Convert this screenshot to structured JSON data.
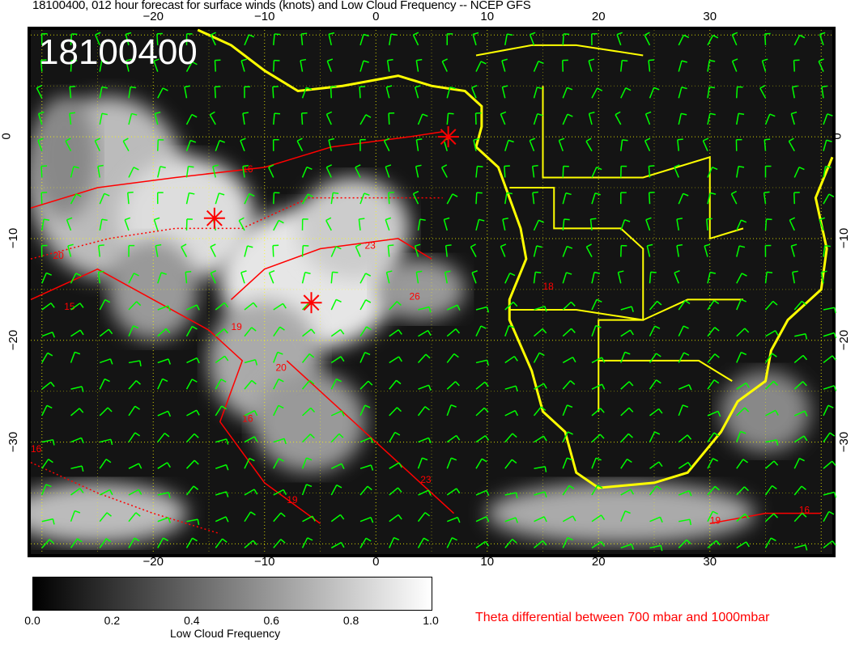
{
  "title": "18100400, 012 hour forecast for surface winds (knots) and Low Cloud Frequency -- NCEP GFS",
  "timestamp_label": "18100400",
  "map": {
    "lon_range": [
      -31,
      41
    ],
    "lat_range": [
      -41,
      10.5
    ],
    "lon_ticks": [
      "−20",
      "−10",
      "0",
      "10",
      "20",
      "30"
    ],
    "lon_tick_values": [
      -20,
      -10,
      0,
      10,
      20,
      30
    ],
    "lat_ticks": [
      "0",
      "−10",
      "−20",
      "−30"
    ],
    "lat_tick_values": [
      0,
      -10,
      -20,
      -30
    ],
    "colors": {
      "coastline": "#ffff00",
      "wind_barbs": "#00ff00",
      "theta_contours": "#ff0000",
      "grid": "#ffff00"
    },
    "markers": [
      {
        "lon": -14.5,
        "lat": -8,
        "icon": "red-star-icon"
      },
      {
        "lon": 6.5,
        "lat": 0,
        "icon": "red-star-icon"
      },
      {
        "lon": -5.8,
        "lat": -16.3,
        "icon": "red-star-icon"
      }
    ],
    "contour_labels": [
      "16",
      "20",
      "15",
      "19",
      "23",
      "26",
      "20",
      "16",
      "19",
      "16",
      "23",
      "16",
      "19",
      "18"
    ]
  },
  "colorbar": {
    "ticks": [
      "0.0",
      "0.2",
      "0.4",
      "0.6",
      "0.8",
      "1.0"
    ],
    "label": "Low Cloud Frequency",
    "range": [
      0,
      1
    ]
  },
  "theta_label": "Theta differential between 700 mbar and 1000mbar"
}
